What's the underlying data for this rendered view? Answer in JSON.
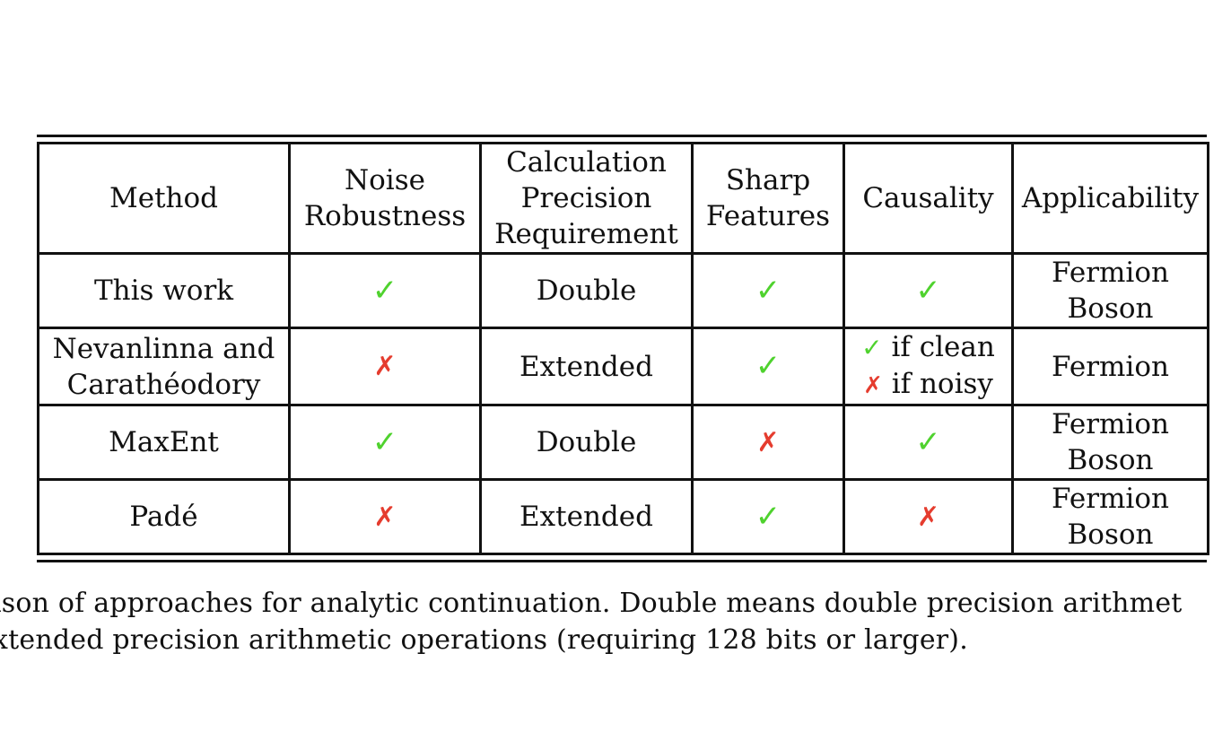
{
  "table": {
    "headers": [
      [
        "Method"
      ],
      [
        "Noise",
        "Robustness"
      ],
      [
        "Calculation",
        "Precision",
        "Requirement"
      ],
      [
        "Sharp",
        "Features"
      ],
      [
        "Causality"
      ],
      [
        "Applicability"
      ]
    ],
    "rows": [
      {
        "method": [
          "This work"
        ],
        "noise": "✓",
        "precision": "Double",
        "sharp": "✓",
        "causality": [
          "✓"
        ],
        "applicability": [
          "Fermion",
          "Boson"
        ]
      },
      {
        "method": [
          "Nevanlinna and",
          "Carathéodory"
        ],
        "noise": "✗",
        "precision": "Extended",
        "sharp": "✓",
        "causality": [
          "✓ if clean",
          "✗ if noisy"
        ],
        "causality_marks": [
          "✓",
          "✗"
        ],
        "causality_text": [
          " if clean",
          " if noisy"
        ],
        "applicability": [
          "Fermion"
        ]
      },
      {
        "method": [
          "MaxEnt"
        ],
        "noise": "✓",
        "precision": "Double",
        "sharp": "✗",
        "causality": [
          "✓"
        ],
        "applicability": [
          "Fermion",
          "Boson"
        ]
      },
      {
        "method": [
          "Padé"
        ],
        "noise": "✗",
        "precision": "Extended",
        "sharp": "✓",
        "causality": [
          "✗"
        ],
        "applicability": [
          "Fermion",
          "Boson"
        ]
      }
    ]
  },
  "caption": {
    "line1": "ison of approaches for analytic continuation.  Double means double precision arithmet",
    "line2": "xtended precision arithmetic operations (requiring 128 bits or larger)."
  },
  "colors": {
    "check": "#4fd22e",
    "cross": "#e53c2e",
    "rule": "#111111"
  },
  "icons": {
    "check": "check-mark-icon",
    "cross": "cross-mark-icon"
  }
}
